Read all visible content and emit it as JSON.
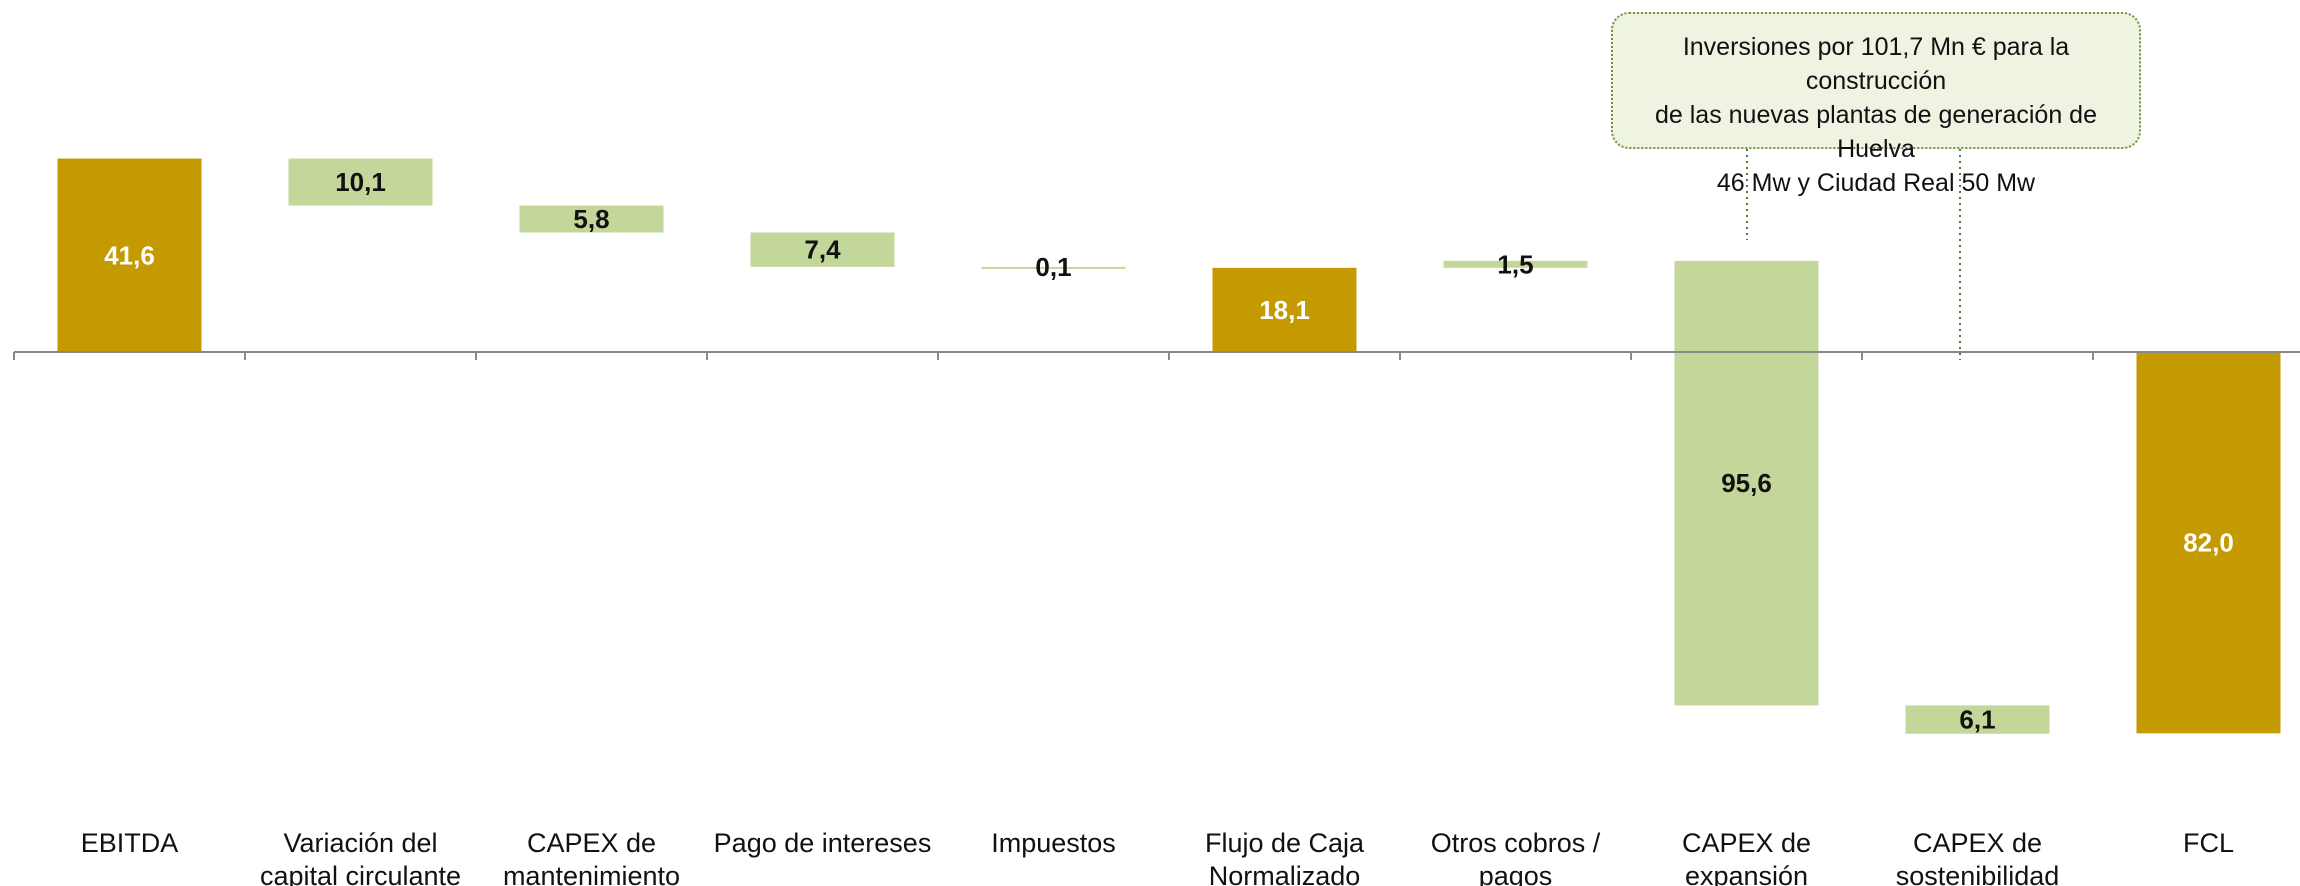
{
  "chart_data": {
    "type": "waterfall",
    "unit": "Mn €",
    "categories": [
      [
        "EBITDA"
      ],
      [
        "Variación del",
        "capital circulante"
      ],
      [
        "CAPEX de",
        "mantenimiento"
      ],
      [
        "Pago de intereses"
      ],
      [
        "Impuestos"
      ],
      [
        "Flujo de Caja",
        "Normalizado"
      ],
      [
        "Otros cobros /",
        "pagos"
      ],
      [
        "CAPEX de",
        "expansión"
      ],
      [
        "CAPEX de",
        "sostenibilidad"
      ],
      [
        "FCL"
      ]
    ],
    "bars": [
      {
        "label": "41,6",
        "start": 0,
        "end": 41.6,
        "kind": "total"
      },
      {
        "label": "10,1",
        "start": 41.6,
        "end": 31.5,
        "kind": "change"
      },
      {
        "label": "5,8",
        "start": 31.5,
        "end": 25.7,
        "kind": "change"
      },
      {
        "label": "7,4",
        "start": 25.7,
        "end": 18.3,
        "kind": "change"
      },
      {
        "label": "0,1",
        "start": 18.3,
        "end": 18.2,
        "kind": "change"
      },
      {
        "label": "18,1",
        "start": 0,
        "end": 18.1,
        "kind": "total"
      },
      {
        "label": "1,5",
        "start": 18.1,
        "end": 19.6,
        "kind": "change"
      },
      {
        "label": "95,6",
        "start": 19.6,
        "end": -76.0,
        "kind": "change"
      },
      {
        "label": "6,1",
        "start": -76.0,
        "end": -82.1,
        "kind": "change"
      },
      {
        "label": "82,0",
        "start": 0,
        "end": -82.0,
        "kind": "total"
      }
    ],
    "ylim": [
      -100,
      70
    ],
    "colors": {
      "total": "#c59a00",
      "change": "#c4d79b",
      "axis": "#888888",
      "total_text": "#ffffff",
      "change_text": "#111111",
      "callout_line": "#4f7a3a"
    },
    "annotation": {
      "lines": [
        "Inversiones por 101,7 Mn € para la construcción",
        "de las nuevas plantas de generación de Huelva",
        "46 Mw y Ciudad Real 50 Mw"
      ],
      "targets": [
        7,
        8
      ]
    }
  }
}
